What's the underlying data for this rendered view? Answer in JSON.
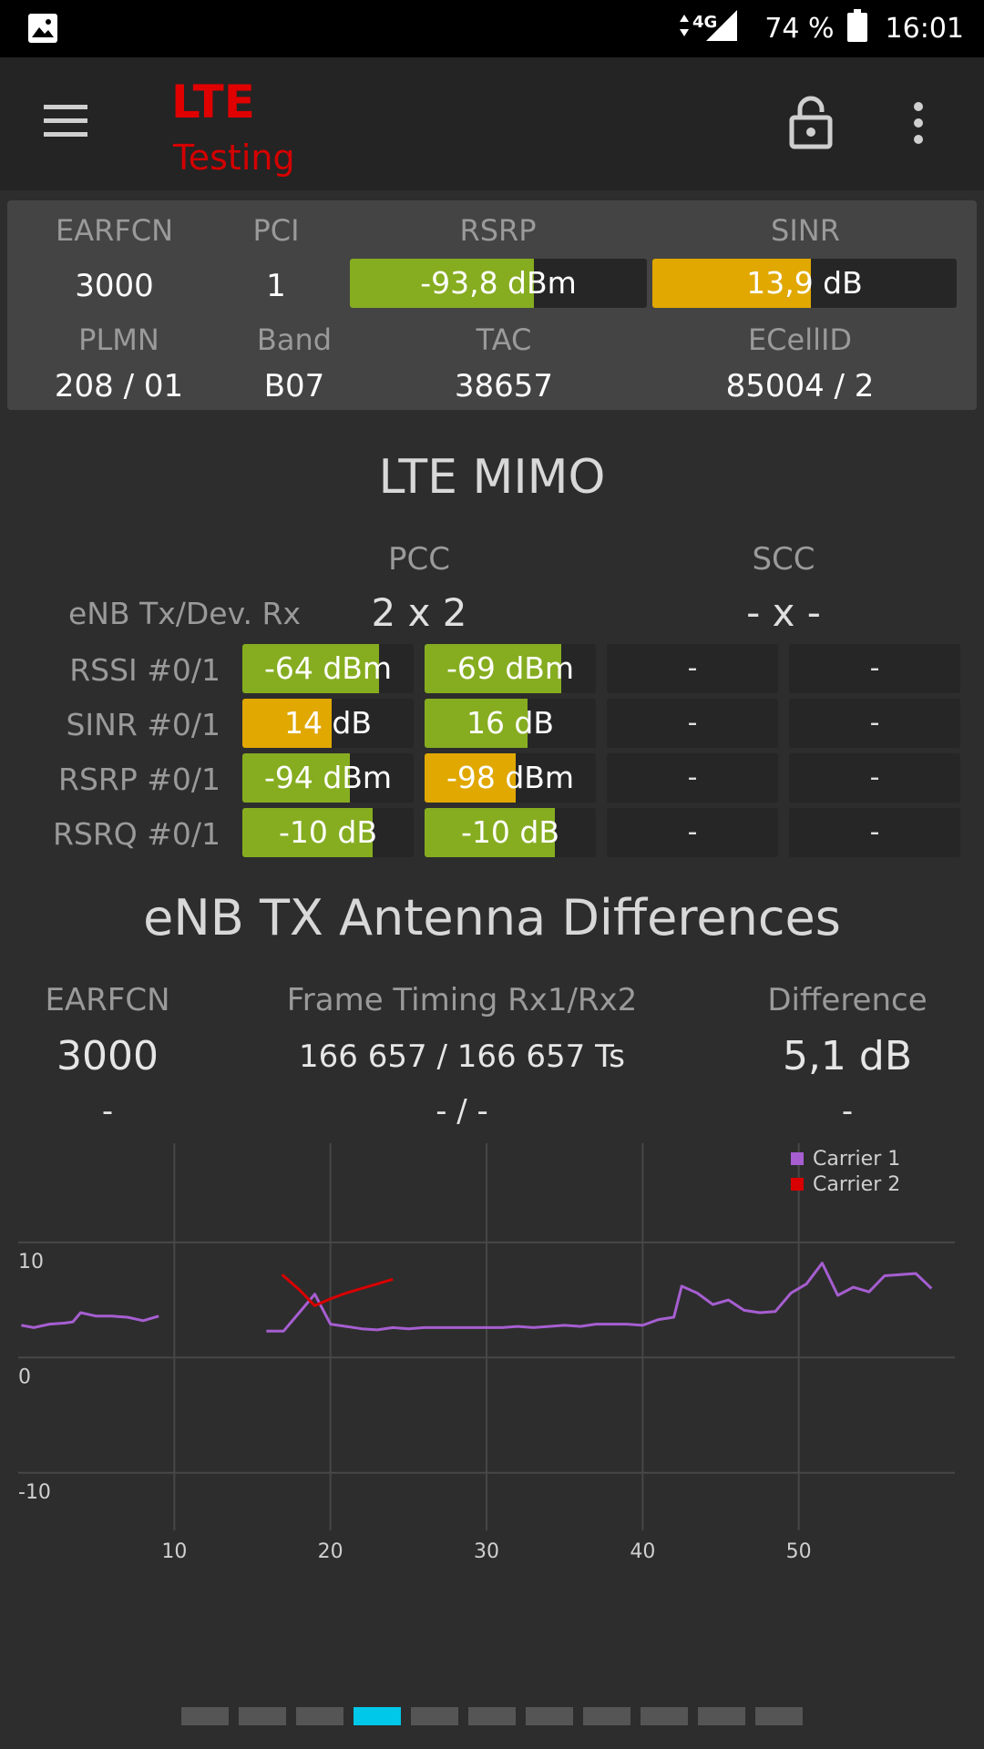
{
  "status_bar": {
    "network": "4G",
    "battery": "74 %",
    "time": "16:01"
  },
  "toolbar": {
    "title": "LTE",
    "subtitle": "Testing"
  },
  "summary": {
    "headers": [
      "EARFCN",
      "PCI",
      "RSRP",
      "SINR"
    ],
    "earfcn": "3000",
    "pci": "1",
    "rsrp": {
      "text": "-93,8 dBm",
      "fill": 0.62,
      "color": "#86ad20"
    },
    "sinr": {
      "text": "13,9 dB",
      "fill": 0.52,
      "color": "#e0a800"
    },
    "headers2": [
      "PLMN",
      "Band",
      "TAC",
      "ECellID"
    ],
    "plmn": "208 / 01",
    "band": "B07",
    "tac": "38657",
    "ecellid": "85004 / 2"
  },
  "mimo": {
    "title": "LTE MIMO",
    "pcc_label": "PCC",
    "scc_label": "SCC",
    "txrx_label": "eNB Tx/Dev. Rx",
    "pcc_value": "2 x 2",
    "scc_value": "- x -",
    "rows": [
      {
        "label": "RSSI #0/1",
        "c0": {
          "text": "-64 dBm",
          "fill": 0.8,
          "color": "#86ad20"
        },
        "c1": {
          "text": "-69 dBm",
          "fill": 0.8,
          "color": "#86ad20"
        },
        "s0": "-",
        "s1": "-"
      },
      {
        "label": "SINR #0/1",
        "c0": {
          "text": "14 dB",
          "fill": 0.52,
          "color": "#e0a800"
        },
        "c1": {
          "text": "16 dB",
          "fill": 0.6,
          "color": "#86ad20"
        },
        "s0": "-",
        "s1": "-"
      },
      {
        "label": "RSRP #0/1",
        "c0": {
          "text": "-94 dBm",
          "fill": 0.63,
          "color": "#86ad20"
        },
        "c1": {
          "text": "-98 dBm",
          "fill": 0.53,
          "color": "#e0a800"
        },
        "s0": "-",
        "s1": "-"
      },
      {
        "label": "RSRQ #0/1",
        "c0": {
          "text": "-10 dB",
          "fill": 0.76,
          "color": "#86ad20"
        },
        "c1": {
          "text": "-10 dB",
          "fill": 0.76,
          "color": "#86ad20"
        },
        "s0": "-",
        "s1": "-"
      }
    ]
  },
  "antenna": {
    "title": "eNB TX Antenna Differences",
    "headers": [
      "EARFCN",
      "Frame Timing Rx1/Rx2",
      "Difference"
    ],
    "row1": {
      "earfcn": "3000",
      "timing": "166 657 / 166 657 Ts",
      "diff": "5,1 dB"
    },
    "row2": {
      "earfcn": "-",
      "timing": "- / -",
      "diff": "-"
    }
  },
  "chart_data": {
    "type": "line",
    "x_ticks": [
      "10",
      "20",
      "30",
      "40",
      "50"
    ],
    "y_ticks": [
      "10",
      "0",
      "-10"
    ],
    "xlim": [
      0,
      60
    ],
    "ylim": [
      -15,
      19
    ],
    "grid": true,
    "legend_position": "top-right",
    "series": [
      {
        "name": "Carrier 1",
        "color": "#a65ed1",
        "segments": [
          [
            [
              0.2,
              2.8
            ],
            [
              1,
              2.6
            ],
            [
              2,
              2.9
            ],
            [
              3,
              3.0
            ],
            [
              3.5,
              3.1
            ],
            [
              4,
              3.9
            ],
            [
              5,
              3.6
            ],
            [
              6,
              3.6
            ],
            [
              7,
              3.5
            ],
            [
              8,
              3.2
            ],
            [
              9,
              3.6
            ]
          ],
          [
            [
              15.9,
              2.3
            ],
            [
              17,
              2.3
            ],
            [
              18,
              3.9
            ],
            [
              19,
              5.5
            ],
            [
              20,
              2.9
            ],
            [
              21,
              2.7
            ],
            [
              22,
              2.5
            ],
            [
              23,
              2.4
            ],
            [
              24,
              2.6
            ],
            [
              25,
              2.5
            ],
            [
              26,
              2.6
            ],
            [
              27,
              2.6
            ],
            [
              28,
              2.6
            ],
            [
              29,
              2.6
            ],
            [
              30,
              2.6
            ],
            [
              31,
              2.6
            ],
            [
              32,
              2.7
            ],
            [
              33,
              2.6
            ],
            [
              34,
              2.7
            ],
            [
              35,
              2.8
            ],
            [
              36,
              2.7
            ],
            [
              37,
              2.9
            ],
            [
              38,
              2.9
            ],
            [
              39,
              2.9
            ],
            [
              40,
              2.8
            ],
            [
              41,
              3.3
            ],
            [
              42,
              3.5
            ],
            [
              42.5,
              6.2
            ],
            [
              43.5,
              5.6
            ],
            [
              44.5,
              4.6
            ],
            [
              45.5,
              5.0
            ],
            [
              46.5,
              4.1
            ],
            [
              47.5,
              3.9
            ],
            [
              48.5,
              4.0
            ],
            [
              49.5,
              5.6
            ],
            [
              50.5,
              6.4
            ],
            [
              51.5,
              8.2
            ],
            [
              52.5,
              5.4
            ],
            [
              53.5,
              6.1
            ],
            [
              54.5,
              5.7
            ],
            [
              55.5,
              7.1
            ],
            [
              56.5,
              7.2
            ],
            [
              57.5,
              7.3
            ],
            [
              58.5,
              6.0
            ]
          ]
        ]
      },
      {
        "name": "Carrier 2",
        "color": "#d80000",
        "segments": [
          [
            [
              16.9,
              7.2
            ],
            [
              18,
              5.9
            ],
            [
              19,
              4.5
            ],
            [
              20,
              5.1
            ],
            [
              21,
              5.6
            ],
            [
              22,
              6.0
            ],
            [
              23,
              6.4
            ],
            [
              24,
              6.8
            ]
          ]
        ]
      }
    ]
  },
  "pager": {
    "count": 11,
    "active": 3
  }
}
